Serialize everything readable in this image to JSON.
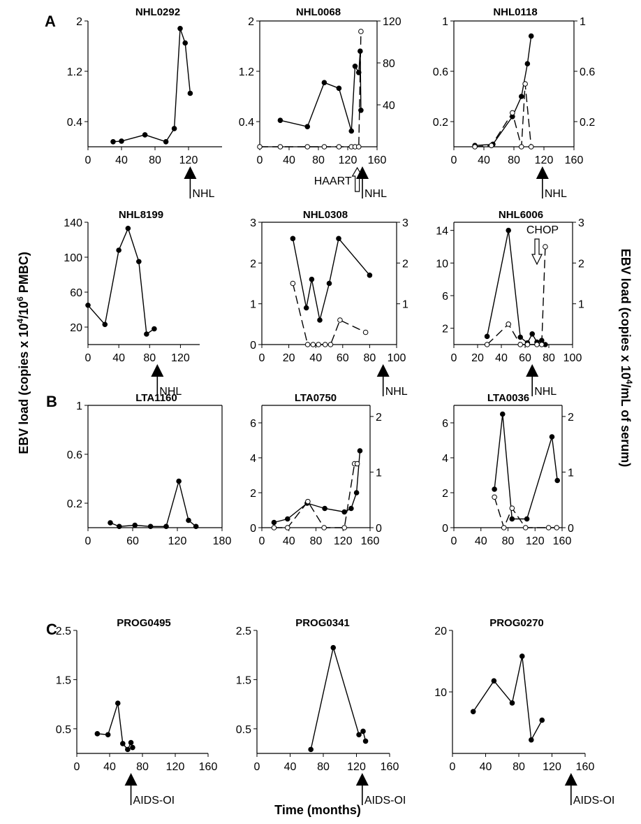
{
  "axis_labels": {
    "left": "EBV load  (copies x 10^4/10^6 PMBC)",
    "right": "EBV load (copies x 10^4/mL of serum)",
    "bottom": "Time (months)"
  },
  "panel_letters": [
    "A",
    "B",
    "C"
  ],
  "chart_data": [
    {
      "name": "NHL0292",
      "type": "line",
      "title": "NHL0292",
      "xlim": [
        0,
        160
      ],
      "xticks": [
        0,
        40,
        80,
        120
      ],
      "ylim": [
        0,
        2
      ],
      "yticks": [
        0.4,
        1.2,
        2
      ],
      "series": [
        {
          "marker": "filled",
          "dashed": false,
          "x": [
            30,
            40,
            68,
            93,
            103,
            110,
            116,
            122
          ],
          "y": [
            0.08,
            0.09,
            0.19,
            0.08,
            0.29,
            1.88,
            1.65,
            0.85
          ]
        }
      ],
      "events": [
        {
          "label": "NHL",
          "x": 122,
          "arrow": "filled"
        }
      ]
    },
    {
      "name": "NHL0068",
      "type": "line",
      "title": "NHL0068",
      "xlim": [
        0,
        160
      ],
      "xticks": [
        0,
        40,
        80,
        120,
        160
      ],
      "ylim": [
        0,
        2
      ],
      "yticks": [
        0.4,
        1.2,
        2
      ],
      "y2lim": [
        0,
        120
      ],
      "y2ticks": [
        40,
        80,
        120
      ],
      "series": [
        {
          "marker": "filled",
          "dashed": false,
          "axis": "left",
          "x": [
            28,
            65,
            88,
            108,
            125,
            130,
            135,
            137,
            138
          ],
          "y": [
            0.42,
            0.32,
            1.02,
            0.93,
            0.25,
            1.28,
            1.18,
            1.52,
            0.58
          ]
        },
        {
          "marker": "open",
          "dashed": true,
          "axis": "right",
          "x": [
            0,
            28,
            65,
            88,
            108,
            125,
            130,
            135,
            138
          ],
          "y": [
            0,
            0,
            0,
            0,
            0,
            0,
            0,
            0,
            110
          ]
        }
      ],
      "events": [
        {
          "label": "HAART",
          "x": 133,
          "arrow": "open"
        },
        {
          "label": "NHL",
          "x": 140,
          "arrow": "filled"
        }
      ]
    },
    {
      "name": "NHL0118",
      "type": "line",
      "title": "NHL0118",
      "xlim": [
        0,
        160
      ],
      "xticks": [
        0,
        40,
        80,
        120,
        160
      ],
      "ylim": [
        0,
        1
      ],
      "yticks": [
        0.2,
        0.6,
        1
      ],
      "y2lim": [
        0,
        1
      ],
      "y2ticks": [
        0.2,
        0.6,
        1
      ],
      "series": [
        {
          "marker": "filled",
          "dashed": false,
          "axis": "left",
          "x": [
            28,
            52,
            78,
            90,
            98,
            103
          ],
          "y": [
            0.01,
            0.02,
            0.24,
            0.4,
            0.66,
            0.88
          ]
        },
        {
          "marker": "open",
          "dashed": true,
          "axis": "right",
          "x": [
            28,
            50,
            78,
            90,
            95,
            103
          ],
          "y": [
            0,
            0.01,
            0.27,
            0.0,
            0.5,
            0.0
          ]
        }
      ],
      "events": [
        {
          "label": "NHL",
          "x": 118,
          "arrow": "filled"
        }
      ]
    },
    {
      "name": "NHL8199",
      "type": "line",
      "title": "NHL8199",
      "xlim": [
        0,
        145
      ],
      "xticks": [
        0,
        40,
        80,
        120
      ],
      "ylim": [
        0,
        140
      ],
      "yticks": [
        20,
        60,
        100,
        140
      ],
      "series": [
        {
          "marker": "filled",
          "dashed": false,
          "x": [
            0,
            22,
            40,
            52,
            66,
            76,
            86
          ],
          "y": [
            45,
            23,
            108,
            133,
            95,
            12,
            18
          ]
        }
      ],
      "events": [
        {
          "label": "NHL",
          "x": 90,
          "arrow": "filled"
        }
      ]
    },
    {
      "name": "NHL0308",
      "type": "line",
      "title": "NHL0308",
      "xlim": [
        0,
        100
      ],
      "xticks": [
        0,
        20,
        40,
        60,
        80,
        100
      ],
      "ylim": [
        0,
        3
      ],
      "yticks": [
        0,
        1,
        2,
        3
      ],
      "y2lim": [
        0,
        3
      ],
      "y2ticks": [
        1,
        2,
        3
      ],
      "series": [
        {
          "marker": "filled",
          "dashed": false,
          "axis": "left",
          "x": [
            23,
            33,
            37,
            43,
            50,
            57,
            80
          ],
          "y": [
            2.6,
            0.9,
            1.6,
            0.6,
            1.5,
            2.6,
            1.7
          ]
        },
        {
          "marker": "open",
          "dashed": true,
          "axis": "right",
          "x": [
            23,
            34,
            38,
            42,
            47,
            51,
            58,
            77
          ],
          "y": [
            1.5,
            0,
            0,
            0,
            0,
            0,
            0.6,
            0.3
          ]
        }
      ],
      "events": [
        {
          "label": "NHL",
          "x": 90,
          "arrow": "filled"
        }
      ]
    },
    {
      "name": "NHL6006",
      "type": "line",
      "title": "NHL6006",
      "xlim": [
        0,
        100
      ],
      "xticks": [
        0,
        20,
        40,
        60,
        80,
        100
      ],
      "ylim": [
        0,
        15
      ],
      "yticks": [
        2,
        6,
        10,
        14
      ],
      "y2lim": [
        0,
        3
      ],
      "y2ticks": [
        1,
        2,
        3
      ],
      "series": [
        {
          "marker": "filled",
          "dashed": false,
          "axis": "left",
          "x": [
            28,
            46,
            56,
            62,
            66,
            70,
            74,
            77
          ],
          "y": [
            1,
            14,
            0.9,
            0.2,
            1.3,
            0.3,
            0.5,
            0
          ]
        },
        {
          "marker": "open",
          "dashed": true,
          "axis": "right",
          "x": [
            28,
            46,
            56,
            62,
            70,
            74,
            77
          ],
          "y": [
            0,
            0.5,
            0,
            0,
            0,
            0,
            2.4
          ]
        }
      ],
      "events": [
        {
          "label": "CHOP",
          "x": 70,
          "arrow": "open"
        },
        {
          "label": "NHL",
          "x": 66,
          "arrow": "filled"
        }
      ]
    },
    {
      "name": "LTA1160",
      "type": "line",
      "title": "LTA1160",
      "xlim": [
        0,
        180
      ],
      "xticks": [
        0,
        60,
        120,
        180
      ],
      "ylim": [
        0,
        1
      ],
      "yticks": [
        0.2,
        0.6,
        1
      ],
      "series": [
        {
          "marker": "filled",
          "dashed": false,
          "x": [
            30,
            42,
            63,
            84,
            105,
            122,
            135,
            145
          ],
          "y": [
            0.04,
            0.01,
            0.02,
            0.01,
            0.01,
            0.38,
            0.06,
            0.01
          ]
        }
      ]
    },
    {
      "name": "LTA0750",
      "type": "line",
      "title": "LTA0750",
      "xlim": [
        0,
        160
      ],
      "xticks": [
        0,
        40,
        80,
        120,
        160
      ],
      "ylim": [
        0,
        7
      ],
      "yticks": [
        0,
        2,
        4,
        6
      ],
      "y2lim": [
        0,
        2.2
      ],
      "y2ticks": [
        0,
        1,
        2
      ],
      "series": [
        {
          "marker": "filled",
          "dashed": false,
          "axis": "left",
          "x": [
            18,
            38,
            67,
            93,
            122,
            132,
            140,
            145
          ],
          "y": [
            0.3,
            0.5,
            1.4,
            1.1,
            0.9,
            1.1,
            2.0,
            4.4
          ]
        },
        {
          "marker": "open",
          "dashed": true,
          "axis": "right",
          "x": [
            18,
            38,
            68,
            92,
            122,
            137,
            141
          ],
          "y": [
            0,
            0,
            0.47,
            0,
            0,
            1.15,
            1.15
          ]
        }
      ]
    },
    {
      "name": "LTA0036",
      "type": "line",
      "title": "LTA0036",
      "xlim": [
        0,
        160
      ],
      "xticks": [
        0,
        40,
        80,
        120,
        160
      ],
      "ylim": [
        0,
        7
      ],
      "yticks": [
        0,
        2,
        4,
        6
      ],
      "y2lim": [
        0,
        2.2
      ],
      "y2ticks": [
        0,
        1,
        2
      ],
      "series": [
        {
          "marker": "filled",
          "dashed": false,
          "axis": "left",
          "x": [
            60,
            72,
            86,
            108,
            145,
            153
          ],
          "y": [
            2.2,
            6.5,
            0.5,
            0.5,
            5.2,
            2.7
          ]
        },
        {
          "marker": "open",
          "dashed": true,
          "axis": "right",
          "x": [
            60,
            74,
            86,
            106,
            140,
            152
          ],
          "y": [
            0.55,
            0,
            0.35,
            0,
            0,
            0
          ]
        }
      ]
    },
    {
      "name": "PROG0495",
      "type": "line",
      "title": "PROG0495",
      "xlim": [
        0,
        160
      ],
      "xticks": [
        0,
        40,
        80,
        120,
        160
      ],
      "ylim": [
        0,
        2.5
      ],
      "yticks": [
        0.5,
        1.5,
        2.5
      ],
      "series": [
        {
          "marker": "filled",
          "dashed": false,
          "x": [
            25,
            38,
            50,
            56,
            62,
            66,
            68
          ],
          "y": [
            0.4,
            0.38,
            1.02,
            0.2,
            0.08,
            0.22,
            0.12
          ]
        }
      ],
      "events": [
        {
          "label": "AIDS-OI",
          "x": 66,
          "arrow": "filled"
        }
      ]
    },
    {
      "name": "PROG0341",
      "type": "line",
      "title": "PROG0341",
      "xlim": [
        0,
        160
      ],
      "xticks": [
        0,
        40,
        80,
        120,
        160
      ],
      "ylim": [
        0,
        2.5
      ],
      "yticks": [
        0.5,
        1.5,
        2.5
      ],
      "series": [
        {
          "marker": "filled",
          "dashed": false,
          "x": [
            65,
            92,
            123,
            128,
            131
          ],
          "y": [
            0.08,
            2.15,
            0.38,
            0.45,
            0.25
          ]
        }
      ],
      "events": [
        {
          "label": "AIDS-OI",
          "x": 127,
          "arrow": "filled"
        }
      ]
    },
    {
      "name": "PROG0270",
      "type": "line",
      "title": "PROG0270",
      "xlim": [
        0,
        160
      ],
      "xticks": [
        0,
        40,
        80,
        120,
        160
      ],
      "ylim": [
        0,
        20
      ],
      "yticks": [
        10,
        20
      ],
      "series": [
        {
          "marker": "filled",
          "dashed": false,
          "x": [
            25,
            50,
            72,
            84,
            95,
            108
          ],
          "y": [
            6.8,
            11.8,
            8.2,
            15.8,
            2.2,
            5.4
          ]
        }
      ],
      "events": [
        {
          "label": "AIDS-OI",
          "x": 143,
          "arrow": "filled"
        }
      ]
    }
  ]
}
